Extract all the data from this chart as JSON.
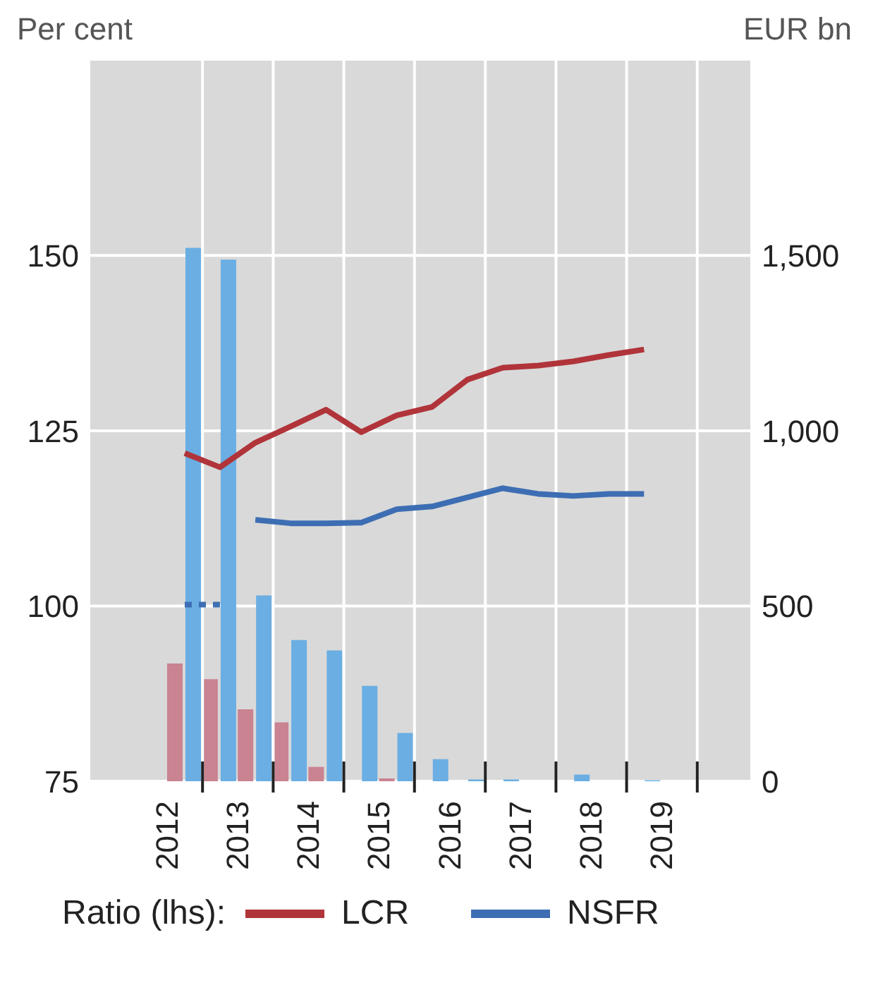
{
  "chart_data": {
    "type": "line",
    "ylabel": "Per cent",
    "y2label": "EUR bn",
    "legend_title": "Ratio (lhs):",
    "x": [
      "2012-10",
      "2013-04",
      "2013-10",
      "2014-04",
      "2014-10",
      "2015-04",
      "2015-10",
      "2016-04",
      "2016-10",
      "2017-04",
      "2017-10",
      "2018-04",
      "2018-10",
      "2019-04"
    ],
    "xlim": [
      "2011-06",
      "2020-10"
    ],
    "xticks": [
      {
        "value": "2012-07",
        "label": "2012"
      },
      {
        "value": "2013-01",
        "label": null
      },
      {
        "value": "2013-07",
        "label": "2013"
      },
      {
        "value": "2014-01",
        "label": null
      },
      {
        "value": "2014-07",
        "label": "2014"
      },
      {
        "value": "2015-01",
        "label": null
      },
      {
        "value": "2015-07",
        "label": "2015"
      },
      {
        "value": "2016-01",
        "label": null
      },
      {
        "value": "2016-07",
        "label": "2016"
      },
      {
        "value": "2017-01",
        "label": null
      },
      {
        "value": "2017-07",
        "label": "2017"
      },
      {
        "value": "2018-01",
        "label": null
      },
      {
        "value": "2018-07",
        "label": "2018"
      },
      {
        "value": "2019-01",
        "label": null
      },
      {
        "value": "2019-07",
        "label": "2019"
      },
      {
        "value": "2020-01",
        "label": null
      }
    ],
    "ylim": [
      75,
      178
    ],
    "yticks": [
      75,
      100,
      125,
      150
    ],
    "y2lim": [
      0,
      2060
    ],
    "y2ticks": [
      0,
      500,
      {
        "value": 1000,
        "label": "1,000"
      },
      {
        "value": 1500,
        "label": "1,500"
      }
    ],
    "grid": true,
    "legend": "bottom",
    "series": [
      {
        "type": "bar",
        "axis": "y2",
        "color": "#c98391",
        "values": [
          336,
          291,
          205,
          168,
          41,
          null,
          8,
          null,
          null,
          null,
          null,
          null,
          null,
          null
        ]
      },
      {
        "type": "bar",
        "axis": "y2",
        "color": "#6aaee3",
        "values": [
          1522,
          1488,
          530,
          403,
          373,
          272,
          138,
          63,
          5,
          5,
          null,
          19,
          null,
          3
        ]
      },
      {
        "name": "LCR",
        "color": "#b0343a",
        "line_style": "solid",
        "values": [
          121.8,
          119.8,
          123.3,
          125.6,
          128.0,
          124.8,
          127.2,
          128.4,
          132.3,
          134.0,
          134.3,
          134.9,
          135.8,
          136.6
        ]
      },
      {
        "name": "NSFR",
        "color": "#3d6eb3",
        "line_style": "solid",
        "values": [
          null,
          null,
          112.3,
          111.8,
          111.8,
          111.9,
          113.8,
          114.2,
          115.5,
          116.8,
          116.0,
          115.7,
          116.0,
          116.0
        ]
      },
      {
        "color": "#3d6eb3",
        "line_style": "dotted",
        "values": [
          100.2,
          100.2,
          null,
          null,
          null,
          null,
          null,
          null,
          null,
          null,
          null,
          null,
          null,
          null
        ]
      }
    ]
  }
}
